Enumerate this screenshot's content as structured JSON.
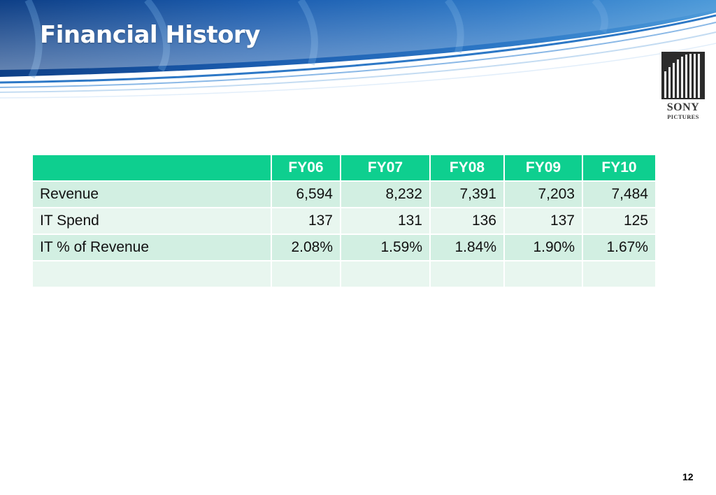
{
  "slide": {
    "title": "Financial History",
    "page_number": "12"
  },
  "logo": {
    "line1": "SONY",
    "line2": "PICTURES"
  },
  "table": {
    "columns": [
      "",
      "FY06",
      "FY07",
      "FY08",
      "FY09",
      "FY10"
    ],
    "rows": [
      {
        "label": "Revenue",
        "values": [
          "6,594",
          "8,232",
          "7,391",
          "7,203",
          "7,484"
        ]
      },
      {
        "label": "IT Spend",
        "values": [
          "137",
          "131",
          "136",
          "137",
          "125"
        ]
      },
      {
        "label": "IT % of Revenue",
        "values": [
          "2.08%",
          "1.59%",
          "1.84%",
          "1.90%",
          "1.67%"
        ]
      },
      {
        "label": "",
        "values": [
          "",
          "",
          "",
          "",
          ""
        ]
      }
    ]
  },
  "colors": {
    "header": "#0ecf8f",
    "row_dark": "#d2efe2",
    "row_light": "#e8f6ef",
    "banner": "#1f5fae"
  }
}
